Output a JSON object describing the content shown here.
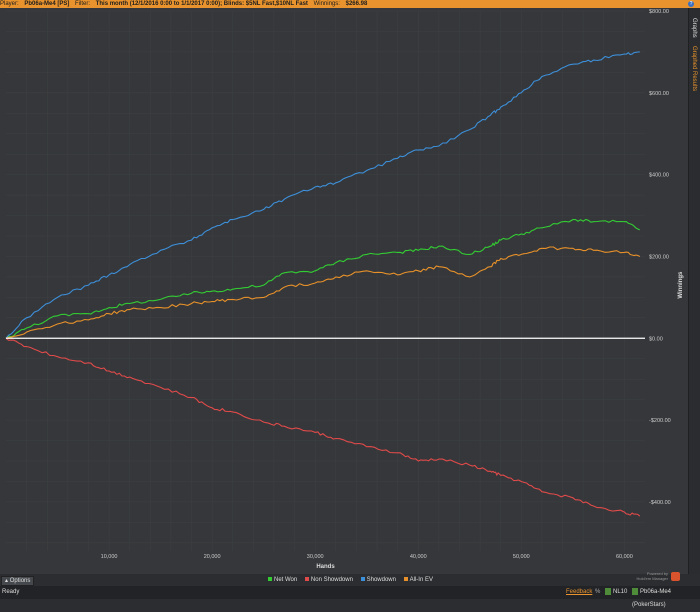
{
  "header": {
    "player_label": "Player:",
    "player_value": "Pb06a-Me4 [PS]",
    "filter_label": "Filter:",
    "filter_value": "This month (12/1/2016 0:00 to 1/1/2017 0:00); Blinds: $5NL Fast,$10NL Fast",
    "winnings_label": "Winnings:",
    "winnings_value": "$266.98",
    "help_icon": "?"
  },
  "side_tabs": [
    "Graphs",
    "Graphed Results"
  ],
  "chart_data": {
    "type": "line",
    "xlabel": "Hands",
    "ylabel": "Winnings",
    "xlim": [
      0,
      62000
    ],
    "ylim": [
      -520,
      800
    ],
    "x_ticks": [
      10000,
      20000,
      30000,
      40000,
      50000,
      60000
    ],
    "x_tick_labels": [
      "10,000",
      "20,000",
      "30,000",
      "40,000",
      "50,000",
      "60,000"
    ],
    "y_ticks": [
      800,
      600,
      400,
      200,
      0,
      -200,
      -400
    ],
    "y_tick_labels": [
      "$800.00",
      "$600.00",
      "$400.00",
      "$200.00",
      "$0.00",
      "-$200.00",
      "-$400.00"
    ],
    "grid": true,
    "legend_position": "bottom",
    "x": [
      0,
      2000,
      5000,
      8000,
      10000,
      12000,
      15000,
      18000,
      20000,
      22000,
      25000,
      27000,
      30000,
      32000,
      35000,
      38000,
      40000,
      42000,
      45000,
      47000,
      48000,
      50000,
      52000,
      55000,
      57000,
      60000,
      61500
    ],
    "series": [
      {
        "name": "Net Won",
        "color": "#33cc33",
        "values": [
          0,
          25,
          55,
          60,
          75,
          85,
          95,
          110,
          115,
          120,
          130,
          160,
          165,
          185,
          205,
          210,
          215,
          225,
          205,
          225,
          240,
          255,
          270,
          290,
          285,
          285,
          265
        ]
      },
      {
        "name": "Non Showdown",
        "color": "#e04a4a",
        "values": [
          0,
          -20,
          -45,
          -60,
          -80,
          -95,
          -120,
          -145,
          -170,
          -180,
          -205,
          -215,
          -230,
          -245,
          -265,
          -280,
          -300,
          -295,
          -310,
          -325,
          -335,
          -350,
          -375,
          -390,
          -410,
          -425,
          -435
        ]
      },
      {
        "name": "Showdown",
        "color": "#3d8fd9",
        "values": [
          0,
          50,
          100,
          130,
          155,
          180,
          215,
          240,
          270,
          290,
          315,
          340,
          370,
          380,
          410,
          440,
          460,
          470,
          510,
          545,
          565,
          600,
          640,
          670,
          680,
          695,
          700
        ]
      },
      {
        "name": "All-In EV",
        "color": "#e8912a",
        "values": [
          0,
          15,
          35,
          45,
          60,
          70,
          75,
          85,
          90,
          95,
          100,
          125,
          135,
          150,
          165,
          155,
          165,
          175,
          150,
          175,
          195,
          205,
          220,
          220,
          215,
          210,
          200
        ]
      }
    ]
  },
  "legend": {
    "options_label": "Options",
    "items": [
      "Net Won",
      "Non Showdown",
      "Showdown",
      "All-In EV"
    ]
  },
  "brand": {
    "line1": "Powered by",
    "line2": "Hold'em Manager"
  },
  "status": {
    "ready": "Ready",
    "feedback": "Feedback",
    "percent": "%",
    "limit": "NL10",
    "player": "Pb06a-Me4 (PokerStars)"
  }
}
